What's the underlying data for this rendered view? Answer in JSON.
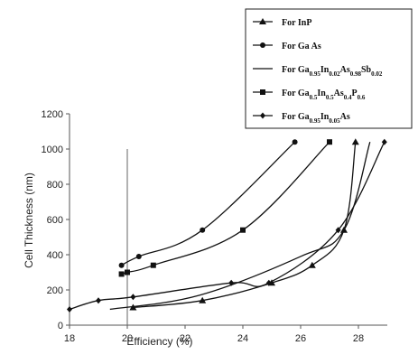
{
  "chart_data": {
    "type": "line",
    "xlabel": "Efficiency (%)",
    "ylabel": "Cell Thickness (nm)",
    "xlim": [
      18,
      29
    ],
    "ylim": [
      0,
      1200
    ],
    "xticks": [
      18,
      20,
      22,
      24,
      26,
      28
    ],
    "yticks": [
      0,
      200,
      400,
      600,
      800,
      1000,
      1200
    ],
    "xtick_labels": [
      "18",
      "20",
      "22",
      "24",
      "26",
      "28"
    ],
    "ytick_labels": [
      "0",
      "200",
      "400",
      "600",
      "800",
      "1000",
      "1200"
    ],
    "grid": false,
    "legend_position": "top-right",
    "reference_line_x": 20,
    "series": [
      {
        "name": "For InP",
        "marker": "triangle",
        "x": [
          20.2,
          22.6,
          25.0,
          26.4,
          27.5,
          27.9
        ],
        "y": [
          100,
          140,
          240,
          340,
          540,
          1040
        ]
      },
      {
        "name": "For Ga As",
        "marker": "circle",
        "x": [
          19.8,
          20.4,
          22.6,
          25.8
        ],
        "y": [
          340,
          390,
          540,
          1040
        ]
      },
      {
        "name": "For Ga0.95In0.02As0.98Sb0.02",
        "marker": "none",
        "x": [
          19.4,
          22.5,
          26.0,
          27.5,
          28.4
        ],
        "y": [
          90,
          170,
          390,
          540,
          1040
        ]
      },
      {
        "name": "For Ga0.5In0.5As0.4P0.6",
        "marker": "square",
        "x": [
          19.8,
          20.0,
          20.9,
          24.0,
          27.0
        ],
        "y": [
          290,
          300,
          340,
          540,
          1040
        ]
      },
      {
        "name": "For Ga0.95In0.05As",
        "marker": "diamond",
        "x": [
          18.0,
          19.0,
          20.2,
          23.6,
          24.9,
          27.3,
          28.9
        ],
        "y": [
          90,
          140,
          160,
          240,
          240,
          540,
          1040
        ]
      }
    ]
  },
  "legend": {
    "items": [
      {
        "text": "For InP",
        "base": "For InP",
        "parts": []
      },
      {
        "text": "For Ga As",
        "base": "For Ga As",
        "parts": []
      },
      {
        "text": "For Ga0.95In0.02As0.98Sb0.02",
        "base": "For Ga",
        "parts": [
          [
            "0.95",
            "In"
          ],
          [
            "0.02",
            "As"
          ],
          [
            "0.98",
            "Sb"
          ],
          [
            "0.02",
            ""
          ]
        ]
      },
      {
        "text": "For Ga0.5In0.5As0.4P0.6",
        "base": "For Ga",
        "parts": [
          [
            "0.5",
            "In"
          ],
          [
            "0.5",
            "As"
          ],
          [
            "0.4",
            "P"
          ],
          [
            "0.6",
            ""
          ]
        ]
      },
      {
        "text": "For Ga0.95In0.05As",
        "base": "For Ga",
        "parts": [
          [
            "0.95",
            "In"
          ],
          [
            "0.05",
            "As"
          ]
        ]
      }
    ]
  }
}
